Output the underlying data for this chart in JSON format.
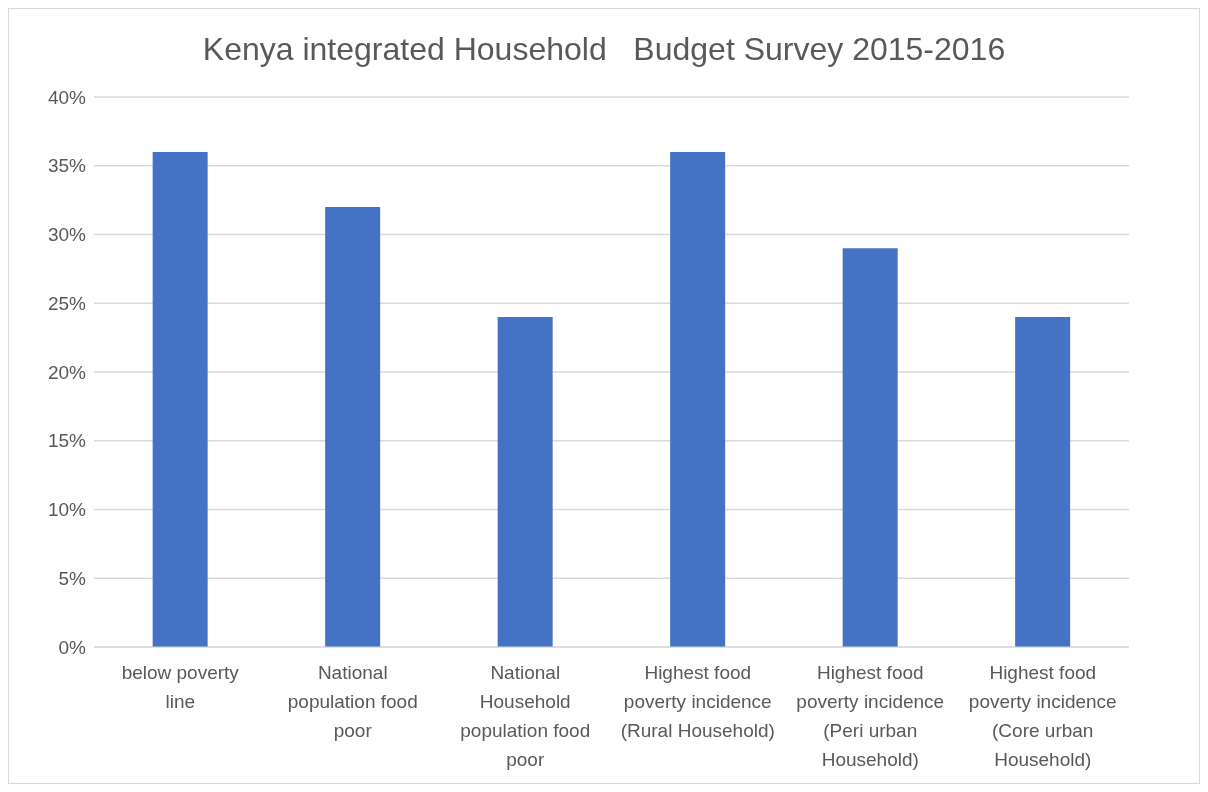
{
  "chart_data": {
    "type": "bar",
    "title": "Kenya integrated Household   Budget Survey 2015-2016",
    "categories": [
      "below poverty line",
      "National population food poor",
      "National Household population food poor",
      "Highest food poverty incidence (Rural Household)",
      "Highest food poverty incidence (Peri urban Household)",
      "Highest food poverty incidence (Core urban Household)"
    ],
    "values": [
      36,
      32,
      24,
      36,
      29,
      24
    ],
    "color": "#4472c4",
    "ylim": [
      0,
      40
    ],
    "yticks": [
      {
        "value": 0,
        "label": "0%"
      },
      {
        "value": 5,
        "label": "5%"
      },
      {
        "value": 10,
        "label": "10%"
      },
      {
        "value": 15,
        "label": "15%"
      },
      {
        "value": 20,
        "label": "20%"
      },
      {
        "value": 25,
        "label": "25%"
      },
      {
        "value": 30,
        "label": "30%"
      },
      {
        "value": 35,
        "label": "35%"
      },
      {
        "value": 40,
        "label": "40%"
      }
    ],
    "grid": "y"
  }
}
